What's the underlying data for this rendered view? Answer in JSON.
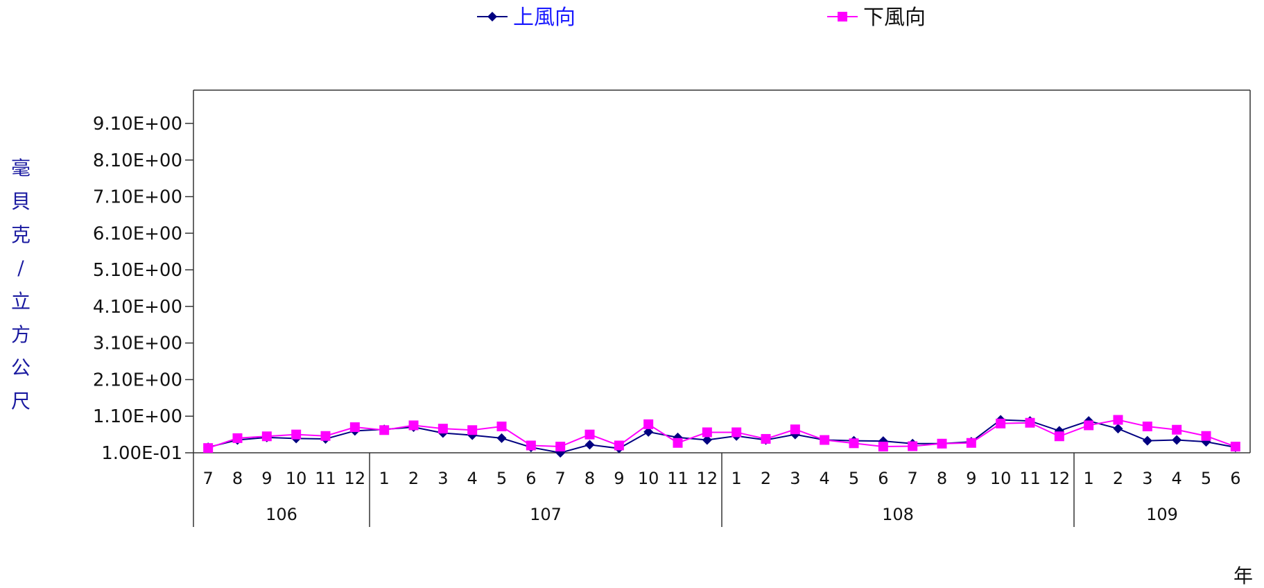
{
  "chart_data": {
    "type": "line",
    "title": "",
    "ylabel": "毫貝克/立方公尺",
    "xlabel": "年",
    "ylim": [
      0.1,
      9.55
    ],
    "yticks": [
      "9.10E+00",
      "8.10E+00",
      "7.10E+00",
      "6.10E+00",
      "5.10E+00",
      "4.10E+00",
      "3.10E+00",
      "2.10E+00",
      "1.10E+00",
      "1.00E-01"
    ],
    "ytick_values": [
      9.1,
      8.1,
      7.1,
      6.1,
      5.1,
      4.1,
      3.1,
      2.1,
      1.1,
      0.1
    ],
    "categories": [
      "7",
      "8",
      "9",
      "10",
      "11",
      "12",
      "1",
      "2",
      "3",
      "4",
      "5",
      "6",
      "7",
      "8",
      "9",
      "10",
      "11",
      "12",
      "1",
      "2",
      "3",
      "4",
      "5",
      "6",
      "7",
      "8",
      "9",
      "10",
      "11",
      "12",
      "1",
      "2",
      "3",
      "4",
      "5",
      "6"
    ],
    "year_groups": [
      {
        "label": "106",
        "count": 6
      },
      {
        "label": "107",
        "count": 12
      },
      {
        "label": "108",
        "count": 12
      },
      {
        "label": "109",
        "count": 6
      }
    ],
    "legend_position": "top",
    "grid": false,
    "series": [
      {
        "name": "上風向",
        "color": "#000080",
        "marker": "diamond",
        "values": [
          0.25,
          0.45,
          0.52,
          0.49,
          0.48,
          0.7,
          0.74,
          0.8,
          0.64,
          0.58,
          0.5,
          0.25,
          0.1,
          0.32,
          0.22,
          0.67,
          0.52,
          0.45,
          0.56,
          0.45,
          0.6,
          0.45,
          0.43,
          0.42,
          0.35,
          0.35,
          0.4,
          1.0,
          0.97,
          0.7,
          0.97,
          0.76,
          0.43,
          0.45,
          0.4,
          0.25
        ]
      },
      {
        "name": "下風向",
        "color": "#ff00ff",
        "marker": "square",
        "values": [
          0.23,
          0.5,
          0.55,
          0.6,
          0.56,
          0.8,
          0.72,
          0.85,
          0.76,
          0.72,
          0.82,
          0.3,
          0.27,
          0.6,
          0.3,
          0.88,
          0.37,
          0.66,
          0.66,
          0.48,
          0.74,
          0.45,
          0.36,
          0.27,
          0.28,
          0.35,
          0.37,
          0.9,
          0.92,
          0.55,
          0.85,
          1.0,
          0.82,
          0.73,
          0.56,
          0.27
        ]
      }
    ]
  }
}
